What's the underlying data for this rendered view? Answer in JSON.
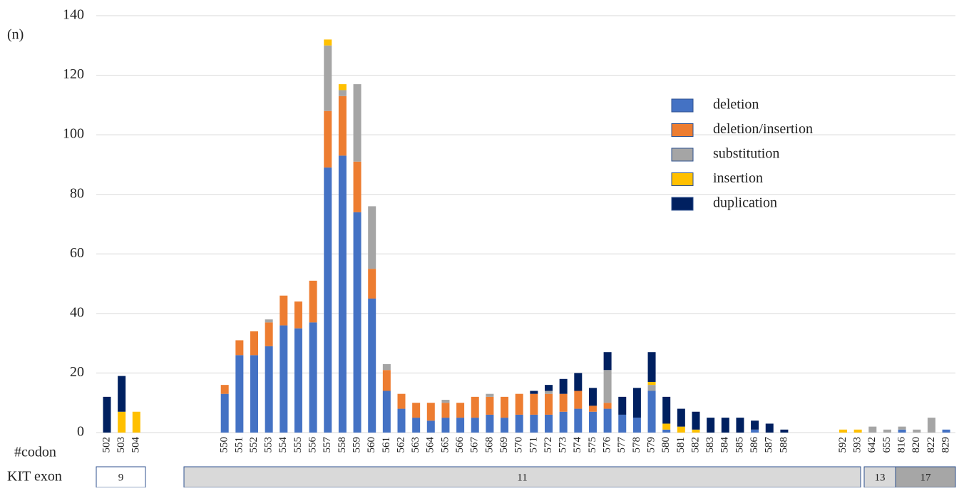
{
  "chart_data": {
    "type": "bar",
    "stacked": true,
    "y_label": "(n)",
    "x_label": "#codon",
    "exon_label": "KIT exon",
    "exons": [
      "9",
      "11",
      "13",
      "17"
    ],
    "categories": [
      "502",
      "503",
      "504",
      null,
      null,
      null,
      null,
      null,
      "550",
      "551",
      "552",
      "553",
      "554",
      "555",
      "556",
      "557",
      "558",
      "559",
      "560",
      "561",
      "562",
      "563",
      "564",
      "565",
      "566",
      "567",
      "568",
      "569",
      "570",
      "571",
      "572",
      "573",
      "574",
      "575",
      "576",
      "577",
      "578",
      "579",
      "580",
      "581",
      "582",
      "583",
      "584",
      "585",
      "586",
      "587",
      "588",
      null,
      null,
      null,
      "592",
      "593",
      "642",
      "655",
      "816",
      "820",
      "822",
      "829"
    ],
    "series": [
      {
        "name": "deletion",
        "color": "#4472c4",
        "values": [
          0,
          0,
          0,
          null,
          null,
          null,
          null,
          null,
          13,
          26,
          26,
          29,
          36,
          35,
          37,
          89,
          93,
          74,
          45,
          14,
          8,
          5,
          4,
          5,
          5,
          5,
          6,
          5,
          6,
          6,
          6,
          7,
          8,
          7,
          8,
          6,
          5,
          14,
          1,
          0,
          0,
          0,
          0,
          0,
          1,
          0,
          0,
          null,
          null,
          null,
          0,
          0,
          0,
          0,
          1,
          0,
          0,
          1
        ]
      },
      {
        "name": "deletion/insertion",
        "color": "#ed7d31",
        "values": [
          0,
          0,
          0,
          null,
          null,
          null,
          null,
          null,
          3,
          5,
          8,
          8,
          10,
          9,
          14,
          19,
          20,
          17,
          10,
          7,
          5,
          5,
          6,
          5,
          5,
          7,
          6,
          7,
          7,
          7,
          7,
          6,
          6,
          2,
          2,
          0,
          0,
          0,
          0,
          0,
          0,
          0,
          0,
          0,
          0,
          0,
          0,
          null,
          null,
          null,
          0,
          0,
          0,
          0,
          0,
          0,
          0,
          0
        ]
      },
      {
        "name": "substitution",
        "color": "#a5a5a5",
        "values": [
          0,
          0,
          0,
          null,
          null,
          null,
          null,
          null,
          0,
          0,
          0,
          1,
          0,
          0,
          0,
          22,
          2,
          26,
          21,
          2,
          0,
          0,
          0,
          1,
          0,
          0,
          1,
          0,
          0,
          0,
          1,
          0,
          0,
          0,
          11,
          0,
          0,
          2,
          0,
          0,
          0,
          0,
          0,
          0,
          0,
          0,
          0,
          null,
          null,
          null,
          0,
          0,
          2,
          1,
          1,
          1,
          5,
          0
        ]
      },
      {
        "name": "insertion",
        "color": "#ffc000",
        "values": [
          0,
          7,
          7,
          null,
          null,
          null,
          null,
          null,
          0,
          0,
          0,
          0,
          0,
          0,
          0,
          2,
          2,
          0,
          0,
          0,
          0,
          0,
          0,
          0,
          0,
          0,
          0,
          0,
          0,
          0,
          0,
          0,
          0,
          0,
          0,
          0,
          0,
          1,
          2,
          2,
          1,
          0,
          0,
          0,
          0,
          0,
          0,
          null,
          null,
          null,
          1,
          1,
          0,
          0,
          0,
          0,
          0,
          0
        ]
      },
      {
        "name": "duplication",
        "color": "#002060",
        "values": [
          12,
          12,
          0,
          null,
          null,
          null,
          null,
          null,
          0,
          0,
          0,
          0,
          0,
          0,
          0,
          0,
          0,
          0,
          0,
          0,
          0,
          0,
          0,
          0,
          0,
          0,
          0,
          0,
          0,
          1,
          2,
          5,
          6,
          6,
          6,
          6,
          10,
          10,
          9,
          6,
          6,
          5,
          5,
          5,
          3,
          3,
          1,
          null,
          null,
          null,
          0,
          0,
          0,
          0,
          0,
          0,
          0,
          0
        ]
      }
    ],
    "ylim": [
      0,
      140
    ],
    "yticks": [
      0,
      20,
      40,
      60,
      80,
      100,
      120,
      140
    ],
    "grid": true,
    "legend": "upper right"
  }
}
